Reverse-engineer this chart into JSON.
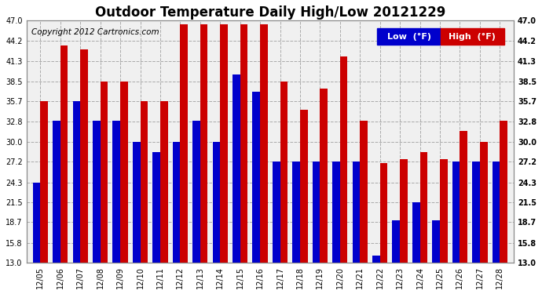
{
  "title": "Outdoor Temperature Daily High/Low 20121229",
  "copyright": "Copyright 2012 Cartronics.com",
  "legend_low": "Low  (°F)",
  "legend_high": "High  (°F)",
  "dates": [
    "12/05",
    "12/06",
    "12/07",
    "12/08",
    "12/09",
    "12/10",
    "12/11",
    "12/12",
    "12/13",
    "12/14",
    "12/15",
    "12/16",
    "12/17",
    "12/18",
    "12/19",
    "12/20",
    "12/21",
    "12/22",
    "12/23",
    "12/24",
    "12/25",
    "12/26",
    "12/27",
    "12/28"
  ],
  "high": [
    35.7,
    43.5,
    43.0,
    38.5,
    38.5,
    35.7,
    35.7,
    46.5,
    46.5,
    46.5,
    46.5,
    46.5,
    38.5,
    34.5,
    37.5,
    42.0,
    33.0,
    27.0,
    27.5,
    28.5,
    27.5,
    31.5,
    30.0,
    33.0
  ],
  "low": [
    24.3,
    33.0,
    35.7,
    33.0,
    33.0,
    30.0,
    28.5,
    30.0,
    33.0,
    30.0,
    39.5,
    37.0,
    27.2,
    27.2,
    27.2,
    27.2,
    27.2,
    14.0,
    19.0,
    21.5,
    19.0,
    27.2,
    27.2,
    27.2
  ],
  "ylim_min": 13.0,
  "ylim_max": 47.0,
  "yticks": [
    13.0,
    15.8,
    18.7,
    21.5,
    24.3,
    27.2,
    30.0,
    32.8,
    35.7,
    38.5,
    41.3,
    44.2,
    47.0
  ],
  "bar_color_low": "#0000cc",
  "bar_color_high": "#cc0000",
  "background_color": "#ffffff",
  "plot_bg_color": "#f0f0f0",
  "grid_color": "#aaaaaa",
  "title_fontsize": 12,
  "copyright_fontsize": 7.5,
  "tick_fontsize": 7,
  "legend_fontsize": 8
}
